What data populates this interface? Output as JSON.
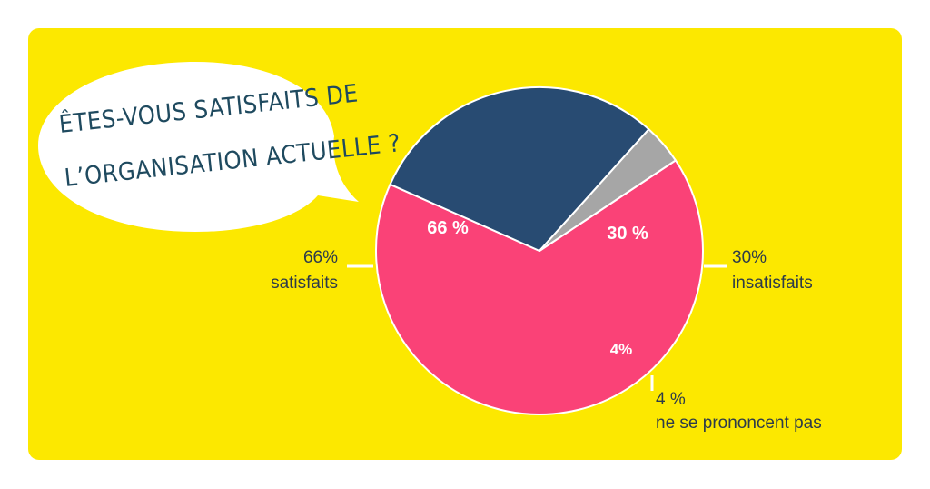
{
  "question": {
    "line1": "ÊTES-VOUS SATISFAITS DE",
    "line2": "L’ORGANISATION ACTUELLE ?"
  },
  "colors": {
    "background": "#FCE800",
    "bubble": "#ffffff",
    "question_text": "#1f4a5f",
    "label_text": "#2d3b4a",
    "satisfaits": "#FA4277",
    "insatisfaits": "#284B72",
    "sans_avis": "#A6A6A6"
  },
  "chart_data": {
    "type": "pie",
    "slices": [
      {
        "key": "satisfaits",
        "value": 66,
        "inner_label": "66 %",
        "outer_label": [
          "66%",
          "satisfaits"
        ],
        "color": "#FA4277"
      },
      {
        "key": "insatisfaits",
        "value": 30,
        "inner_label": "30 %",
        "outer_label": [
          "30%",
          "insatisfaits"
        ],
        "color": "#284B72"
      },
      {
        "key": "sans_avis",
        "value": 4,
        "inner_label": "4%",
        "outer_label": [
          "4 %",
          "ne se prononcent pas"
        ],
        "color": "#A6A6A6"
      }
    ]
  }
}
